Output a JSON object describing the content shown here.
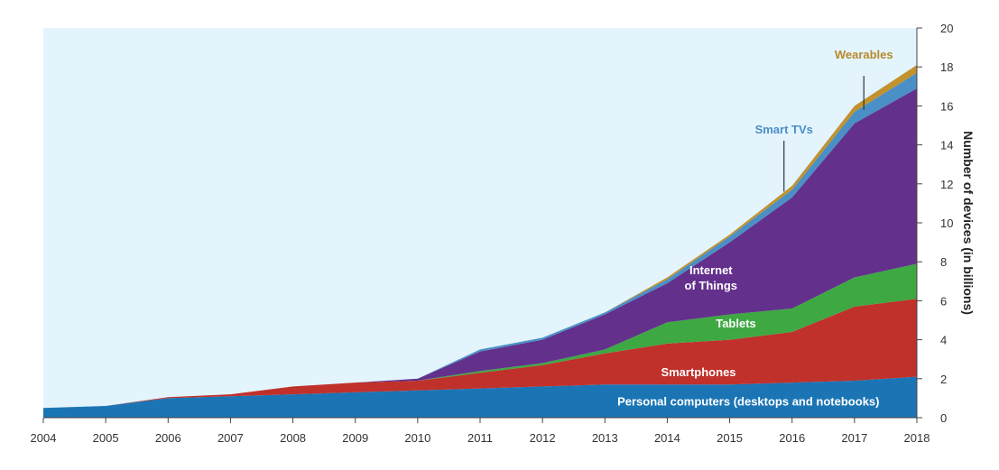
{
  "chart_data": {
    "type": "area",
    "stacked": true,
    "title": "",
    "xlabel": "",
    "ylabel": "Number of devices (in billions)",
    "ylim": [
      0,
      20
    ],
    "y_ticks": [
      0,
      2,
      4,
      6,
      8,
      10,
      12,
      14,
      16,
      18,
      20
    ],
    "x": [
      "2004",
      "2005",
      "2006",
      "2007",
      "2008",
      "2009",
      "2010",
      "2011",
      "2012",
      "2013",
      "2014",
      "2015",
      "2016",
      "2017",
      "2018"
    ],
    "series": [
      {
        "name": "Personal computers (desktops and notebooks)",
        "color": "#1b75b5",
        "values": [
          0.5,
          0.6,
          1.0,
          1.1,
          1.2,
          1.3,
          1.4,
          1.5,
          1.6,
          1.7,
          1.7,
          1.7,
          1.8,
          1.9,
          2.1
        ]
      },
      {
        "name": "Smartphones",
        "color": "#c0312b",
        "values": [
          0.0,
          0.0,
          0.05,
          0.1,
          0.4,
          0.5,
          0.5,
          0.8,
          1.1,
          1.6,
          2.1,
          2.3,
          2.6,
          3.8,
          4.0
        ]
      },
      {
        "name": "Tablets",
        "color": "#3ea843",
        "values": [
          0.0,
          0.0,
          0.0,
          0.0,
          0.0,
          0.0,
          0.0,
          0.1,
          0.1,
          0.2,
          1.1,
          1.3,
          1.2,
          1.5,
          1.8
        ]
      },
      {
        "name": "Internet of Things",
        "color": "#63308c",
        "values": [
          0.0,
          0.0,
          0.0,
          0.0,
          0.0,
          0.0,
          0.1,
          1.0,
          1.2,
          1.8,
          2.0,
          3.7,
          5.7,
          7.9,
          9.0
        ]
      },
      {
        "name": "Smart TVs",
        "color": "#4a8fc6",
        "values": [
          0.0,
          0.0,
          0.0,
          0.0,
          0.0,
          0.0,
          0.0,
          0.1,
          0.1,
          0.1,
          0.2,
          0.3,
          0.4,
          0.6,
          0.8
        ]
      },
      {
        "name": "Wearables",
        "color": "#c2922d",
        "values": [
          0.0,
          0.0,
          0.0,
          0.0,
          0.0,
          0.0,
          0.0,
          0.0,
          0.0,
          0.0,
          0.1,
          0.1,
          0.2,
          0.3,
          0.4
        ]
      }
    ],
    "labels": {
      "pc": "Personal computers (desktops and notebooks)",
      "smartphones": "Smartphones",
      "tablets": "Tablets",
      "iot_line1": "Internet",
      "iot_line2": "of Things",
      "smart_tvs": "Smart TVs",
      "wearables": "Wearables"
    },
    "callout_colors": {
      "smart_tvs": "#4a8fc6",
      "wearables": "#b8892c"
    },
    "background_color": "#e3f4fd"
  }
}
